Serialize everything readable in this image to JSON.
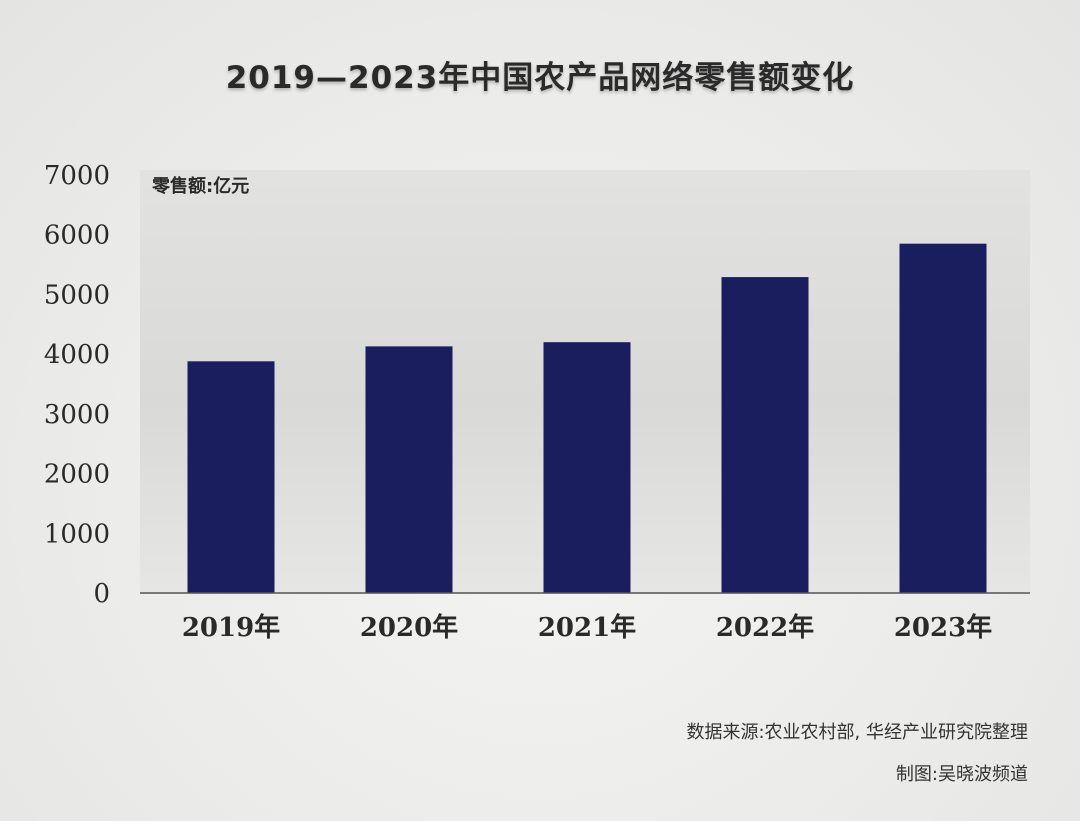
{
  "title": "2019—2023年中国农产品网络零售额变化",
  "unit_label": "零售额:亿元",
  "source": "数据来源:农业农村部, 华经产业研究院整理",
  "credit": "制图:吴晓波频道",
  "colors": {
    "bar": "#1a1d5e",
    "axis": "#555555",
    "text": "#2a2a2a"
  },
  "chart_data": {
    "type": "bar",
    "title": "2019—2023年中国农产品网络零售额变化",
    "xlabel": "",
    "ylabel": "零售额:亿元",
    "categories": [
      "2019年",
      "2020年",
      "2021年",
      "2022年",
      "2023年"
    ],
    "values": [
      3880,
      4130,
      4200,
      5290,
      5850
    ],
    "ylim": [
      0,
      7000
    ],
    "yticks": [
      0,
      1000,
      2000,
      3000,
      4000,
      5000,
      6000,
      7000
    ],
    "grid": false,
    "legend": "none"
  }
}
